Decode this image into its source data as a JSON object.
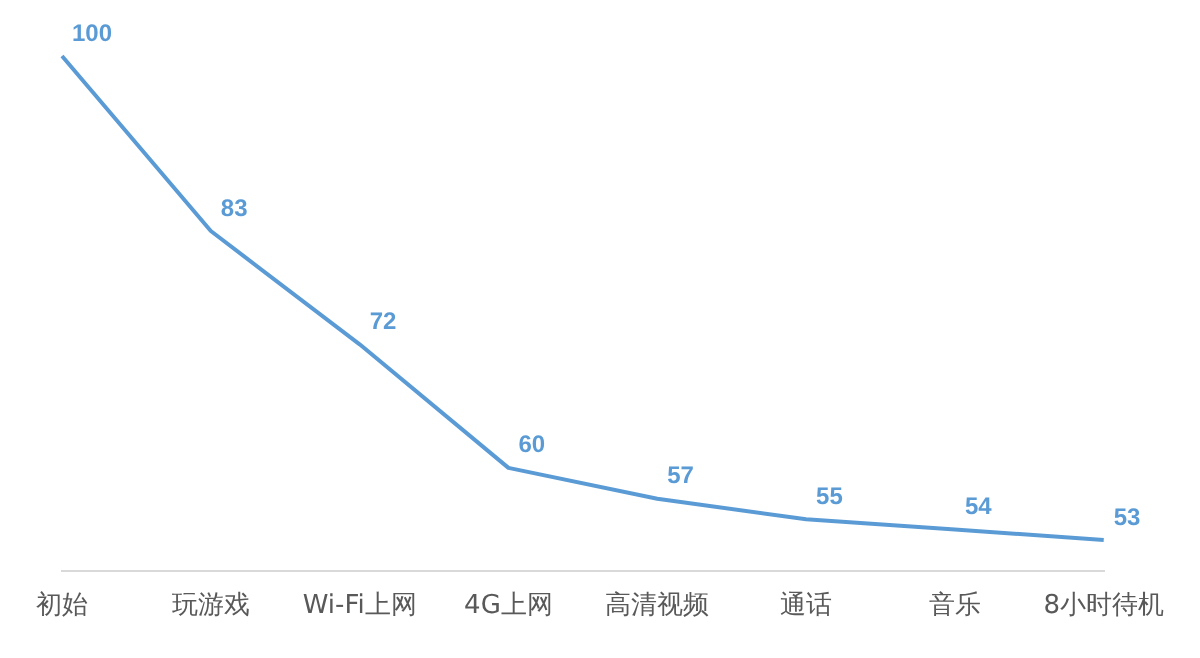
{
  "chart_data": {
    "type": "line",
    "categories": [
      "初始",
      "玩游戏",
      "Wi-Fi上网",
      "4G上网",
      "高清视频",
      "通话",
      "音乐",
      "8小时待机"
    ],
    "series": [
      {
        "color": "#5b9bd5",
        "values": [
          100,
          83,
          72,
          60,
          57,
          55,
          54,
          53
        ]
      }
    ],
    "data_labels": true,
    "grid": false,
    "legend": false,
    "line_style": "solid"
  }
}
